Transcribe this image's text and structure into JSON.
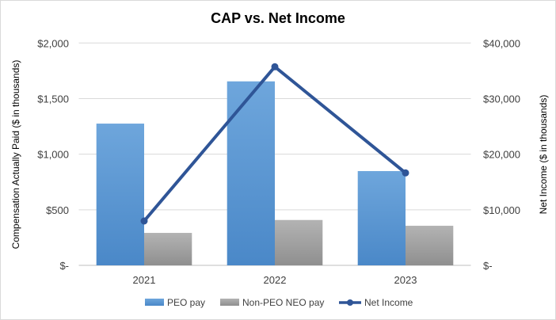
{
  "chart_data": {
    "type": "bar",
    "title": "CAP vs. Net Income",
    "categories": [
      "2021",
      "2022",
      "2023"
    ],
    "series": [
      {
        "name": "PEO pay",
        "type": "bar",
        "axis": "left",
        "values": [
          1275,
          1655,
          848
        ],
        "color": "#5b9bd5"
      },
      {
        "name": "Non-PEO NEO pay",
        "type": "bar",
        "axis": "left",
        "values": [
          292,
          408,
          356
        ],
        "color": "#a5a5a5"
      },
      {
        "name": "Net Income",
        "type": "line",
        "axis": "right",
        "values": [
          7980,
          35725,
          16630
        ],
        "color": "#2f5597"
      }
    ],
    "ylabel": "Compensation  Actually Paid ($ in thousands)",
    "y2label": "Net Income ($ in thousands)",
    "ylim": [
      0,
      2000
    ],
    "y2lim": [
      0,
      40000
    ],
    "yticks": [
      "$-",
      "$500",
      "$1,000",
      "$1,500",
      "$2,000"
    ],
    "y2ticks": [
      "$-",
      "$10,000",
      "$20,000",
      "$30,000",
      "$40,000"
    ],
    "grid": true,
    "legend": "bottom"
  }
}
